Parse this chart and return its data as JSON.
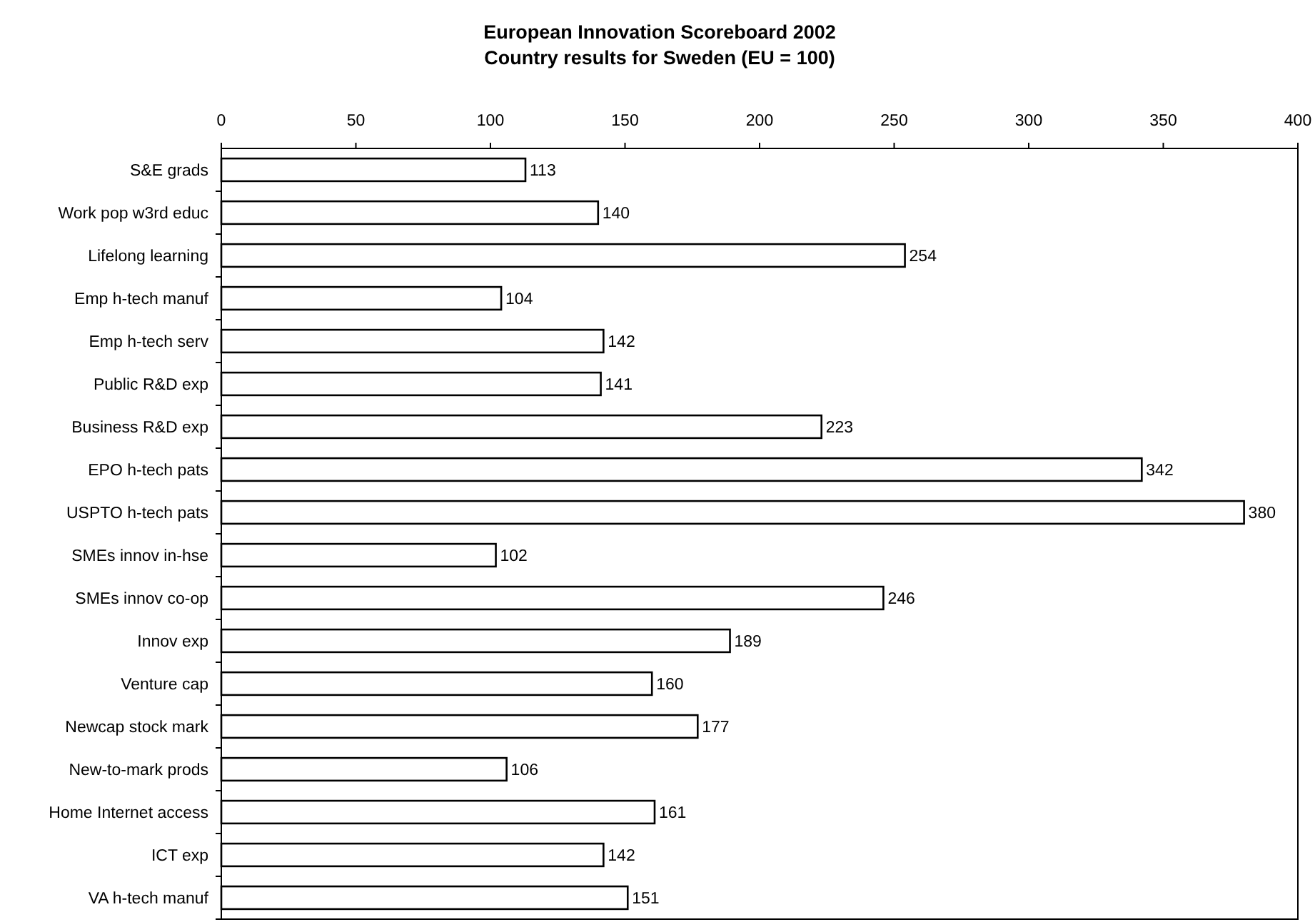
{
  "chart_data": {
    "type": "bar",
    "orientation": "horizontal",
    "title": "European Innovation Scoreboard 2002",
    "subtitle": "Country results for Sweden (EU = 100)",
    "categories": [
      "S&E grads",
      "Work pop w3rd educ",
      "Lifelong learning",
      "Emp h-tech manuf",
      "Emp h-tech serv",
      "Public R&D exp",
      "Business R&D exp",
      "EPO h-tech pats",
      "USPTO h-tech pats",
      "SMEs innov in-hse",
      "SMEs innov co-op",
      "Innov exp",
      "Venture cap",
      "Newcap stock mark",
      "New-to-mark prods",
      "Home Internet access",
      "ICT exp",
      "VA h-tech manuf"
    ],
    "values": [
      113,
      140,
      254,
      104,
      142,
      141,
      223,
      342,
      380,
      102,
      246,
      189,
      160,
      177,
      106,
      161,
      142,
      151
    ],
    "color": "#ffffff",
    "data_labels": true,
    "xlim": [
      0,
      400
    ],
    "xticks": [
      0,
      50,
      100,
      150,
      200,
      250,
      300,
      350,
      400
    ]
  }
}
